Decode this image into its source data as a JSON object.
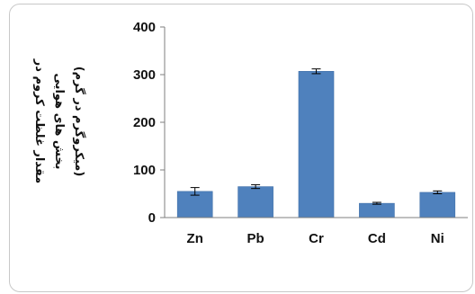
{
  "chart_data": {
    "type": "bar",
    "title": "",
    "xlabel": "",
    "ylabel_lines": [
      "مقدار غلظت کروم در",
      "بخش های هوایی",
      "(میکروگرم در گرم)"
    ],
    "categories": [
      "Zn",
      "Pb",
      "Cr",
      "Cd",
      "Ni"
    ],
    "values": [
      55,
      65,
      307,
      30,
      53
    ],
    "errors": [
      8,
      4,
      5,
      2,
      3
    ],
    "ylim": [
      0,
      400
    ],
    "yticks": [
      "0",
      "100",
      "200",
      "300",
      "400"
    ],
    "grid": false,
    "legend": "none",
    "colors": {
      "bar": "#4f81bd",
      "bar_edge": "#3a6aa3",
      "axis": "#7f7f7f",
      "error": "#000000"
    }
  }
}
